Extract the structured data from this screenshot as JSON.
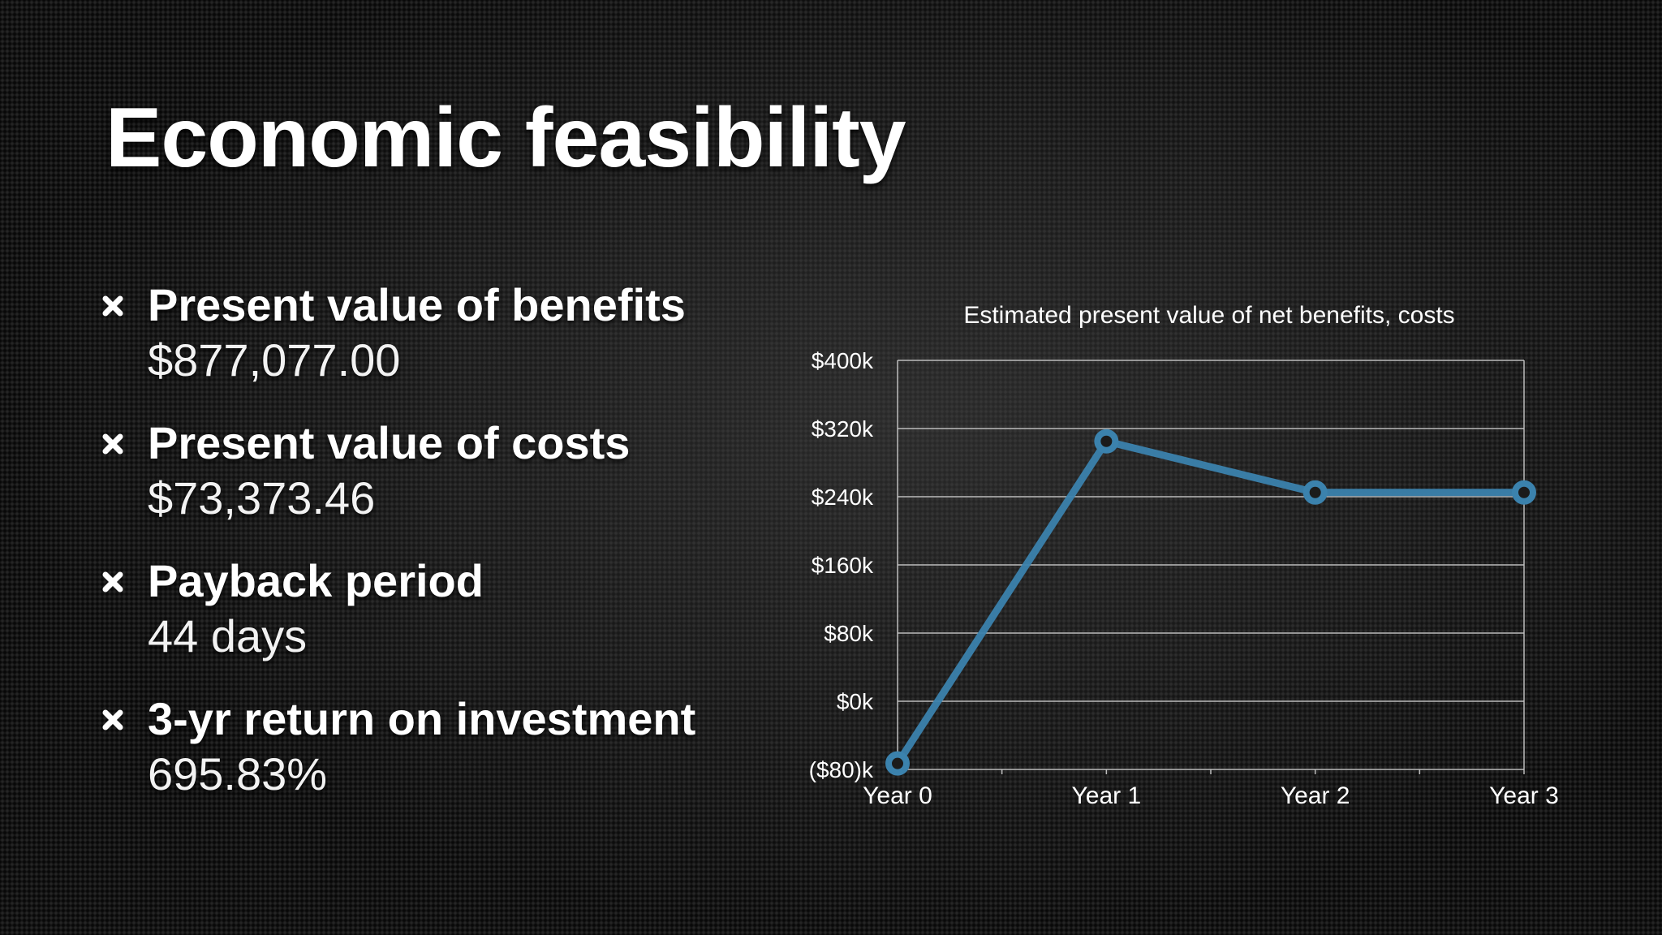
{
  "slide": {
    "title": "Economic feasibility",
    "bullets": [
      {
        "label": "Present value of benefits",
        "value": "$877,077.00"
      },
      {
        "label": "Present value of costs",
        "value": "$73,373.46"
      },
      {
        "label": "Payback period",
        "value": "44 days"
      },
      {
        "label": "3-yr return on investment",
        "value": "695.83%"
      }
    ]
  },
  "chart_data": {
    "type": "line",
    "title": "Estimated present value of net benefits, costs",
    "xlabel": "",
    "ylabel": "",
    "categories": [
      "Year 0",
      "Year 1",
      "Year 2",
      "Year 3"
    ],
    "series": [
      {
        "values": [
          -73,
          305,
          245,
          245
        ],
        "color": "#3b82ad"
      }
    ],
    "ylim": [
      -80,
      400
    ],
    "yticks": [
      -80,
      0,
      80,
      160,
      240,
      320,
      400
    ],
    "ytick_labels": [
      "($80)k",
      "$0k",
      "$80k",
      "$160k",
      "$240k",
      "$320k",
      "$400k"
    ],
    "grid": true,
    "legend": "none"
  },
  "colors": {
    "background": "#141414",
    "text": "#ffffff",
    "series_line": "#3b82ad",
    "grid": "#bdbdbd"
  },
  "icons": {
    "bullet": "cross-bullet-icon"
  }
}
